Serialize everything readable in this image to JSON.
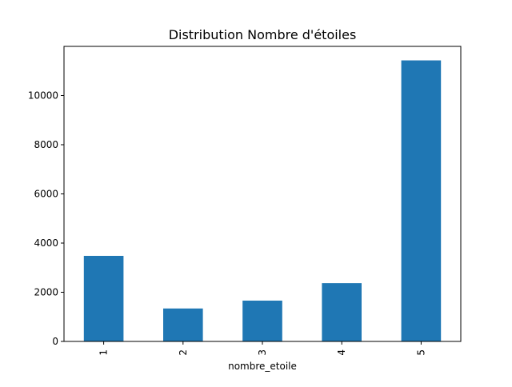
{
  "chart_data": {
    "type": "bar",
    "title": "Distribution Nombre d'étoiles",
    "xlabel": "nombre_etoile",
    "ylabel": "",
    "categories": [
      "1",
      "2",
      "3",
      "4",
      "5"
    ],
    "values": [
      3480,
      1340,
      1660,
      2370,
      11430
    ],
    "ylim": [
      0,
      12000
    ],
    "yticks": [
      0,
      2000,
      4000,
      6000,
      8000,
      10000
    ],
    "ytick_labels": [
      "0",
      "2000",
      "4000",
      "6000",
      "8000",
      "10000"
    ],
    "bar_color": "#1f77b4",
    "grid": false,
    "legend": "none"
  }
}
